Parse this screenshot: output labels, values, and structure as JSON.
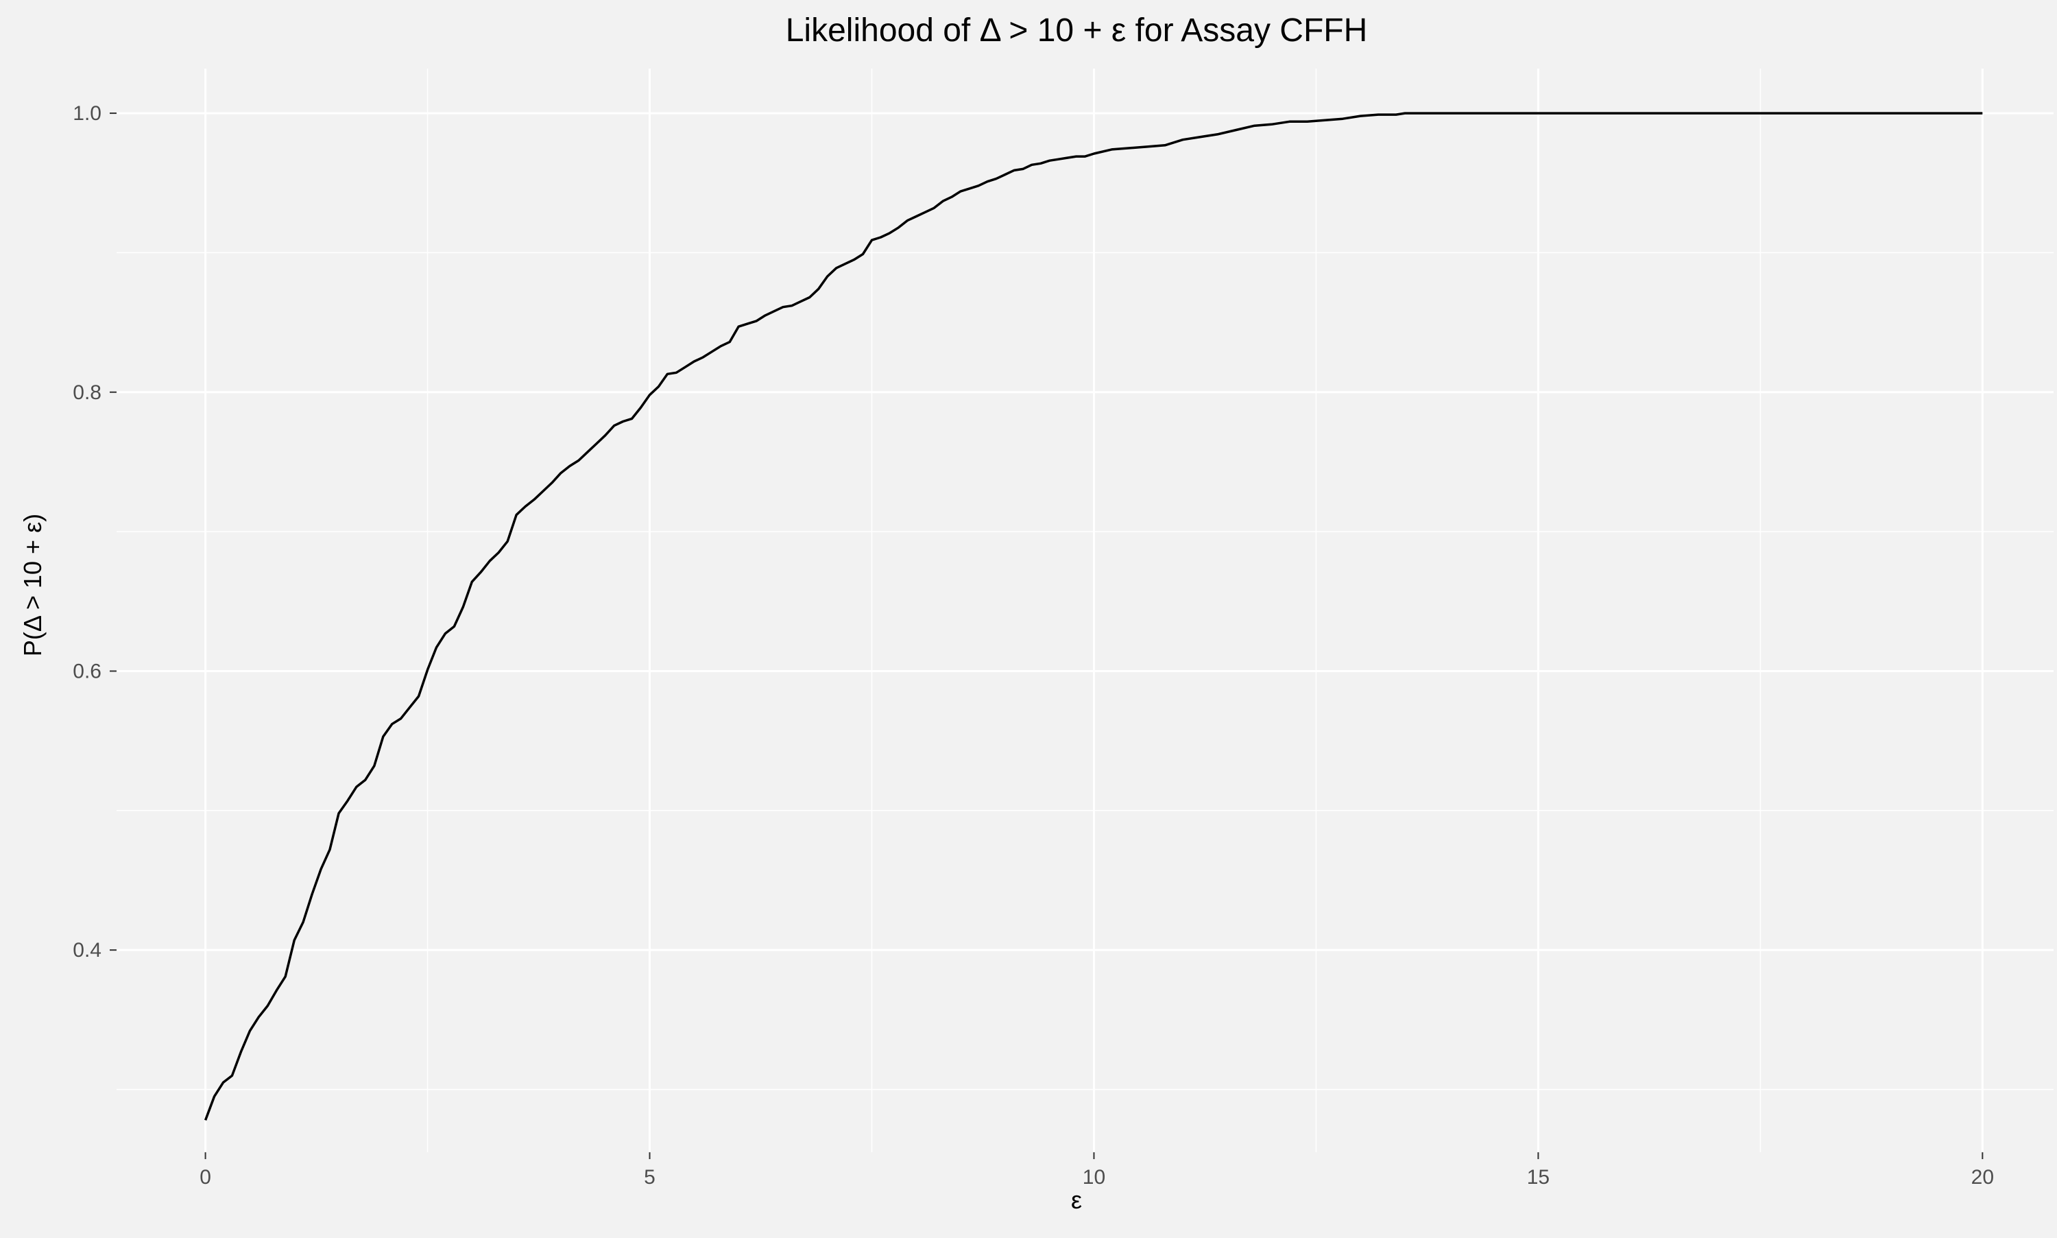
{
  "chart_data": {
    "type": "line",
    "title": "Likelihood of Δ > 10 + ε for Assay CFFH",
    "xlabel": "ε",
    "ylabel": "P(Δ > 10 + ε)",
    "xlim": [
      -1,
      20.8
    ],
    "ylim": [
      0.255,
      1.032
    ],
    "xticks": [
      0,
      5,
      10,
      15,
      20
    ],
    "xtick_labels": [
      "0",
      "5",
      "10",
      "15",
      "20"
    ],
    "xminor": [
      2.5,
      7.5,
      12.5,
      17.5
    ],
    "yticks": [
      0.4,
      0.6,
      0.8,
      1.0
    ],
    "ytick_labels": [
      "0.4",
      "0.6",
      "0.8",
      "1.0"
    ],
    "yminor": [
      0.3,
      0.5,
      0.7,
      0.9
    ],
    "grid": true,
    "legend": "none",
    "colors": {
      "background": "#f2f2f2",
      "gridline": "#ffffff",
      "line": "#000000",
      "text": "#000000",
      "tick_label": "#4d4d4d"
    },
    "series": [
      {
        "x": [
          0,
          0.1,
          0.2,
          0.3,
          0.4,
          0.5,
          0.6,
          0.7,
          0.8,
          0.9,
          1.0,
          1.1,
          1.2,
          1.3,
          1.4,
          1.5,
          1.6,
          1.7,
          1.8,
          1.9,
          2.0,
          2.1,
          2.2,
          2.3,
          2.4,
          2.5,
          2.6,
          2.7,
          2.8,
          2.9,
          3.0,
          3.1,
          3.2,
          3.3,
          3.4,
          3.5,
          3.6,
          3.7,
          3.8,
          3.9,
          4.0,
          4.1,
          4.2,
          4.3,
          4.4,
          4.5,
          4.6,
          4.7,
          4.8,
          4.9,
          5.0,
          5.1,
          5.2,
          5.3,
          5.4,
          5.5,
          5.6,
          5.7,
          5.8,
          5.9,
          6.0,
          6.1,
          6.2,
          6.3,
          6.4,
          6.5,
          6.6,
          6.7,
          6.8,
          6.9,
          7.0,
          7.1,
          7.2,
          7.3,
          7.4,
          7.5,
          7.6,
          7.7,
          7.8,
          7.9,
          8.0,
          8.1,
          8.2,
          8.3,
          8.4,
          8.5,
          8.6,
          8.7,
          8.8,
          8.9,
          9.0,
          9.1,
          9.2,
          9.3,
          9.4,
          9.5,
          9.6,
          9.7,
          9.8,
          9.9,
          10.0,
          10.2,
          10.4,
          10.6,
          10.8,
          11.0,
          11.2,
          11.4,
          11.6,
          11.8,
          12.0,
          12.2,
          12.4,
          12.6,
          12.8,
          13.0,
          13.2,
          13.4,
          13.5,
          14.0,
          15.0,
          16.0,
          17.0,
          18.0,
          19.0,
          20.0
        ],
        "y": [
          0.278,
          0.295,
          0.305,
          0.31,
          0.327,
          0.342,
          0.352,
          0.36,
          0.371,
          0.381,
          0.407,
          0.42,
          0.44,
          0.458,
          0.472,
          0.498,
          0.507,
          0.517,
          0.522,
          0.532,
          0.553,
          0.562,
          0.566,
          0.574,
          0.582,
          0.601,
          0.617,
          0.627,
          0.632,
          0.646,
          0.664,
          0.671,
          0.679,
          0.685,
          0.693,
          0.712,
          0.718,
          0.723,
          0.729,
          0.735,
          0.742,
          0.747,
          0.751,
          0.757,
          0.763,
          0.769,
          0.776,
          0.779,
          0.781,
          0.789,
          0.798,
          0.804,
          0.813,
          0.814,
          0.818,
          0.822,
          0.825,
          0.829,
          0.833,
          0.836,
          0.847,
          0.849,
          0.851,
          0.855,
          0.858,
          0.861,
          0.862,
          0.865,
          0.868,
          0.874,
          0.883,
          0.889,
          0.892,
          0.895,
          0.899,
          0.909,
          0.911,
          0.914,
          0.918,
          0.923,
          0.926,
          0.929,
          0.932,
          0.937,
          0.94,
          0.944,
          0.946,
          0.948,
          0.951,
          0.953,
          0.956,
          0.959,
          0.96,
          0.963,
          0.964,
          0.966,
          0.967,
          0.968,
          0.969,
          0.969,
          0.971,
          0.974,
          0.975,
          0.976,
          0.977,
          0.981,
          0.983,
          0.985,
          0.988,
          0.991,
          0.992,
          0.994,
          0.994,
          0.995,
          0.996,
          0.998,
          0.999,
          0.999,
          1.0,
          1.0,
          1.0,
          1.0,
          1.0,
          1.0,
          1.0,
          1.0
        ]
      }
    ]
  }
}
